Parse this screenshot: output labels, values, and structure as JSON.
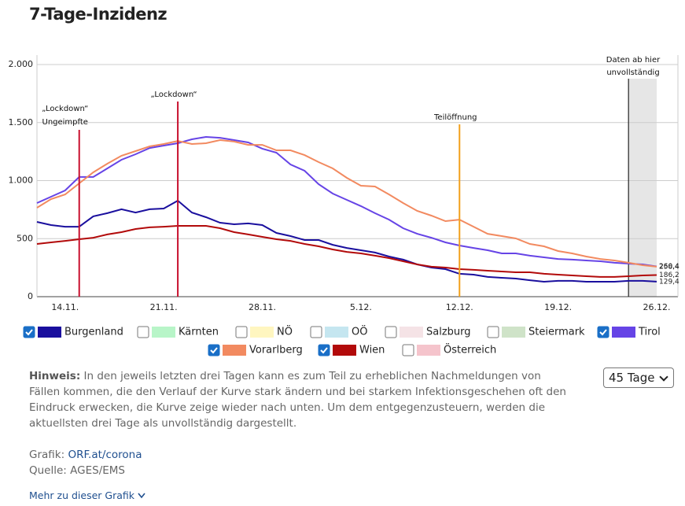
{
  "title": "7-Tage-Inzidenz",
  "chart_data": {
    "type": "line",
    "categories": [
      null,
      null,
      "14.11.",
      null,
      null,
      null,
      null,
      null,
      null,
      "21.11.",
      null,
      null,
      null,
      null,
      null,
      null,
      "28.11.",
      null,
      null,
      null,
      null,
      null,
      null,
      "5.12.",
      null,
      null,
      null,
      null,
      null,
      null,
      "12.12.",
      null,
      null,
      null,
      null,
      null,
      null,
      "19.12.",
      null,
      null,
      null,
      null,
      null,
      null,
      "26.12."
    ],
    "ylim": [
      0,
      2000
    ],
    "yticks": [
      0,
      500,
      {
        "value": 1000,
        "label": "1.000"
      },
      {
        "value": 1500,
        "label": "1.500"
      },
      {
        "value": 2000,
        "label": "2.000"
      }
    ],
    "grid": true,
    "series": [
      {
        "name": "Burgenland",
        "color": "#1a0f9e",
        "checked": true,
        "end_label": "129,4",
        "values": [
          644,
          617,
          603,
          603,
          692,
          719,
          753,
          725,
          753,
          759,
          827,
          725,
          685,
          637,
          624,
          631,
          617,
          549,
          522,
          488,
          488,
          447,
          420,
          400,
          380,
          346,
          319,
          278,
          251,
          237,
          197,
          190,
          170,
          163,
          156,
          142,
          129,
          136,
          136,
          129,
          129,
          129,
          136,
          136,
          129.4
        ]
      },
      {
        "name": "Kärnten",
        "color": "#b8f5c8",
        "checked": false
      },
      {
        "name": "NÖ",
        "color": "#fff6c0",
        "checked": false
      },
      {
        "name": "OÖ",
        "color": "#c5e6f0",
        "checked": false
      },
      {
        "name": "Salzburg",
        "color": "#f5e3e6",
        "checked": false
      },
      {
        "name": "Steiermark",
        "color": "#cfe3c8",
        "checked": false
      },
      {
        "name": "Tirol",
        "color": "#6644e6",
        "checked": true,
        "end_label": "260,4",
        "values": [
          807,
          861,
          915,
          1031,
          1031,
          1105,
          1180,
          1227,
          1281,
          1302,
          1322,
          1356,
          1376,
          1369,
          1349,
          1329,
          1275,
          1241,
          1139,
          1085,
          969,
          888,
          834,
          780,
          719,
          664,
          590,
          542,
          508,
          468,
          441,
          420,
          400,
          373,
          373,
          353,
          339,
          325,
          319,
          312,
          305,
          292,
          285,
          278,
          260.4
        ]
      },
      {
        "name": "Vorarlberg",
        "color": "#f28a60",
        "checked": true,
        "end_label": "258,4",
        "values": [
          766,
          841,
          881,
          976,
          1071,
          1146,
          1214,
          1254,
          1295,
          1315,
          1342,
          1315,
          1322,
          1349,
          1336,
          1308,
          1308,
          1261,
          1261,
          1220,
          1159,
          1105,
          1024,
          956,
          949,
          881,
          807,
          739,
          698,
          651,
          664,
          603,
          542,
          522,
          502,
          454,
          434,
          393,
          373,
          346,
          325,
          312,
          292,
          271,
          258.4
        ]
      },
      {
        "name": "Wien",
        "color": "#b20a0a",
        "checked": true,
        "end_label": "186,2",
        "values": [
          454,
          468,
          481,
          495,
          508,
          536,
          556,
          583,
          597,
          603,
          610,
          610,
          610,
          590,
          556,
          536,
          515,
          495,
          481,
          454,
          434,
          407,
          386,
          373,
          353,
          332,
          305,
          278,
          258,
          251,
          237,
          231,
          224,
          217,
          210,
          210,
          197,
          190,
          183,
          176,
          170,
          170,
          176,
          183,
          186.2
        ]
      },
      {
        "name": "Österreich",
        "color": "#f5c4cc",
        "checked": false
      }
    ],
    "annotations": [
      {
        "lines": [
          "„Lockdown“",
          "Ungeimpfte"
        ],
        "index": 3,
        "color": "#c8102e"
      },
      {
        "lines": [
          "„Lockdown“"
        ],
        "index": 10,
        "color": "#c8102e"
      },
      {
        "lines": [
          "Teilöffnung"
        ],
        "index": 30,
        "color": "#f2a01c"
      }
    ],
    "incomplete": {
      "lines": [
        "Daten ab hier",
        "unvollständig"
      ],
      "from": 42,
      "to": 44
    }
  },
  "select": "45 Tage",
  "note": {
    "lead": "Hinweis:",
    "text": "In den jeweils letzten drei Tagen kann es zum Teil zu erheblichen Nachmeldungen von Fällen kommen, die den Verlauf der Kurve stark ändern und bei starkem Infektionsgeschehen oft den Eindruck erwecken, die Kurve zeige wieder nach unten. Um dem entgegenzusteuern, werden die aktuellsten drei Tage als unvollständig dargestellt."
  },
  "source": {
    "grafik_label": "Grafik:",
    "grafik_link": "ORF.at/corona",
    "quelle": "Quelle: AGES/EMS"
  },
  "more": "Mehr zu dieser Grafik"
}
